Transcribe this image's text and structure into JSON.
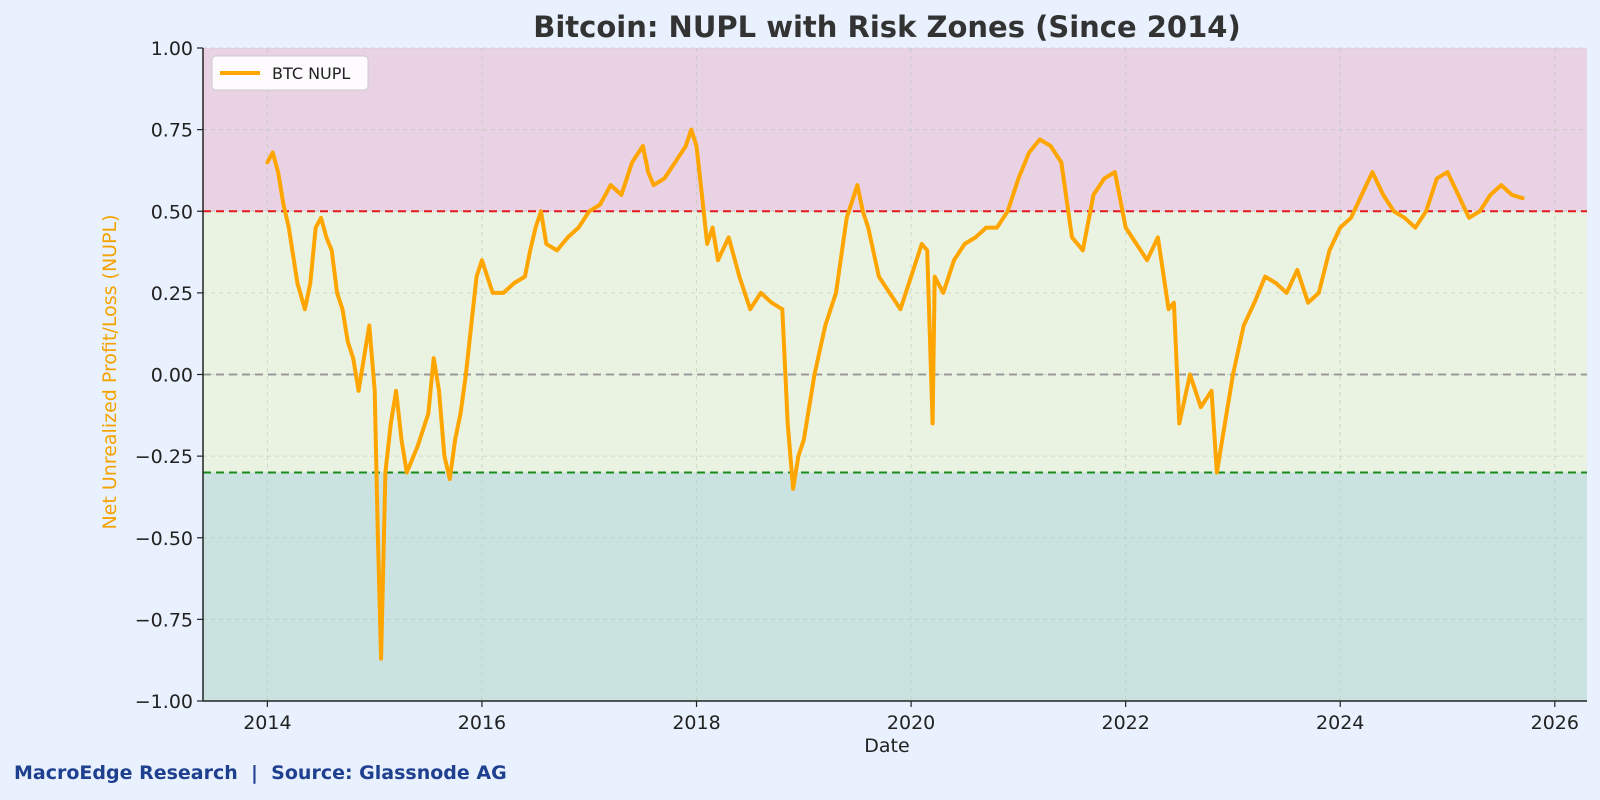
{
  "chart_data": {
    "type": "line",
    "title": "Bitcoin: NUPL with Risk Zones (Since 2014)",
    "xlabel": "Date",
    "ylabel": "Net Unrealized Profit/Loss (NUPL)",
    "xlim": [
      2013.4,
      2026.3
    ],
    "ylim": [
      -1.0,
      1.0
    ],
    "xticks": [
      "2014",
      "2016",
      "2018",
      "2020",
      "2022",
      "2024",
      "2026"
    ],
    "xtick_values": [
      2014,
      2016,
      2018,
      2020,
      2022,
      2024,
      2026
    ],
    "yticks": [
      "1.00",
      "0.75",
      "0.50",
      "0.25",
      "0.00",
      "−0.25",
      "−0.50",
      "−0.75",
      "−1.00"
    ],
    "ytick_values": [
      1.0,
      0.75,
      0.5,
      0.25,
      0.0,
      -0.25,
      -0.5,
      -0.75,
      -1.0
    ],
    "grid": true,
    "legend": {
      "placement": "upper-left",
      "entries": [
        "BTC NUPL"
      ]
    },
    "zones": [
      {
        "from": 0.5,
        "to": 1.0,
        "color": "#e8d2e3"
      },
      {
        "from": -0.3,
        "to": 0.5,
        "color": "#eaf3e2"
      },
      {
        "from": -1.0,
        "to": -0.3,
        "color": "#cbe3e0"
      }
    ],
    "reference_lines": [
      {
        "y": 0.5,
        "color": "#e31a1c",
        "style": "dashed"
      },
      {
        "y": 0.0,
        "color": "#999999",
        "style": "dashed"
      },
      {
        "y": -0.3,
        "color": "#1a8a1a",
        "style": "dashed"
      }
    ],
    "series": [
      {
        "name": "BTC NUPL",
        "color": "#ffa500",
        "x": [
          2014.0,
          2014.05,
          2014.1,
          2014.15,
          2014.2,
          2014.28,
          2014.35,
          2014.4,
          2014.45,
          2014.5,
          2014.55,
          2014.6,
          2014.65,
          2014.7,
          2014.75,
          2014.8,
          2014.85,
          2014.9,
          2014.95,
          2015.0,
          2015.03,
          2015.06,
          2015.1,
          2015.15,
          2015.2,
          2015.25,
          2015.3,
          2015.4,
          2015.5,
          2015.55,
          2015.6,
          2015.65,
          2015.7,
          2015.75,
          2015.8,
          2015.85,
          2015.9,
          2015.95,
          2016.0,
          2016.1,
          2016.2,
          2016.3,
          2016.4,
          2016.45,
          2016.5,
          2016.55,
          2016.6,
          2016.7,
          2016.8,
          2016.9,
          2017.0,
          2017.1,
          2017.2,
          2017.3,
          2017.4,
          2017.5,
          2017.55,
          2017.6,
          2017.7,
          2017.8,
          2017.9,
          2017.95,
          2018.0,
          2018.05,
          2018.1,
          2018.15,
          2018.2,
          2018.3,
          2018.4,
          2018.5,
          2018.6,
          2018.7,
          2018.8,
          2018.85,
          2018.9,
          2018.95,
          2019.0,
          2019.1,
          2019.2,
          2019.3,
          2019.4,
          2019.5,
          2019.55,
          2019.6,
          2019.7,
          2019.8,
          2019.9,
          2020.0,
          2020.1,
          2020.15,
          2020.2,
          2020.22,
          2020.3,
          2020.4,
          2020.5,
          2020.6,
          2020.7,
          2020.8,
          2020.9,
          2021.0,
          2021.1,
          2021.2,
          2021.3,
          2021.4,
          2021.5,
          2021.6,
          2021.7,
          2021.8,
          2021.9,
          2022.0,
          2022.1,
          2022.2,
          2022.3,
          2022.4,
          2022.45,
          2022.5,
          2022.6,
          2022.7,
          2022.8,
          2022.85,
          2022.9,
          2023.0,
          2023.1,
          2023.2,
          2023.3,
          2023.4,
          2023.5,
          2023.6,
          2023.7,
          2023.8,
          2023.9,
          2024.0,
          2024.1,
          2024.2,
          2024.3,
          2024.4,
          2024.5,
          2024.6,
          2024.7,
          2024.8,
          2024.9,
          2025.0,
          2025.1,
          2025.2,
          2025.3,
          2025.4,
          2025.5,
          2025.6,
          2025.7
        ],
        "y": [
          0.65,
          0.68,
          0.62,
          0.52,
          0.45,
          0.28,
          0.2,
          0.28,
          0.45,
          0.48,
          0.42,
          0.38,
          0.25,
          0.2,
          0.1,
          0.05,
          -0.05,
          0.05,
          0.15,
          -0.05,
          -0.5,
          -0.87,
          -0.3,
          -0.15,
          -0.05,
          -0.2,
          -0.3,
          -0.22,
          -0.12,
          0.05,
          -0.05,
          -0.25,
          -0.32,
          -0.2,
          -0.12,
          0.0,
          0.15,
          0.3,
          0.35,
          0.25,
          0.25,
          0.28,
          0.3,
          0.38,
          0.45,
          0.5,
          0.4,
          0.38,
          0.42,
          0.45,
          0.5,
          0.52,
          0.58,
          0.55,
          0.65,
          0.7,
          0.62,
          0.58,
          0.6,
          0.65,
          0.7,
          0.75,
          0.7,
          0.55,
          0.4,
          0.45,
          0.35,
          0.42,
          0.3,
          0.2,
          0.25,
          0.22,
          0.2,
          -0.15,
          -0.35,
          -0.25,
          -0.2,
          0.0,
          0.15,
          0.25,
          0.48,
          0.58,
          0.5,
          0.45,
          0.3,
          0.25,
          0.2,
          0.3,
          0.4,
          0.38,
          -0.15,
          0.3,
          0.25,
          0.35,
          0.4,
          0.42,
          0.45,
          0.45,
          0.5,
          0.6,
          0.68,
          0.72,
          0.7,
          0.65,
          0.42,
          0.38,
          0.55,
          0.6,
          0.62,
          0.45,
          0.4,
          0.35,
          0.42,
          0.2,
          0.22,
          -0.15,
          0.0,
          -0.1,
          -0.05,
          -0.3,
          -0.2,
          0.0,
          0.15,
          0.22,
          0.3,
          0.28,
          0.25,
          0.32,
          0.22,
          0.25,
          0.38,
          0.45,
          0.48,
          0.55,
          0.62,
          0.55,
          0.5,
          0.48,
          0.45,
          0.5,
          0.6,
          0.62,
          0.55,
          0.48,
          0.5,
          0.55,
          0.58,
          0.55,
          0.54
        ]
      }
    ]
  },
  "footer": "MacroEdge Research  |  Source: Glassnode AG"
}
